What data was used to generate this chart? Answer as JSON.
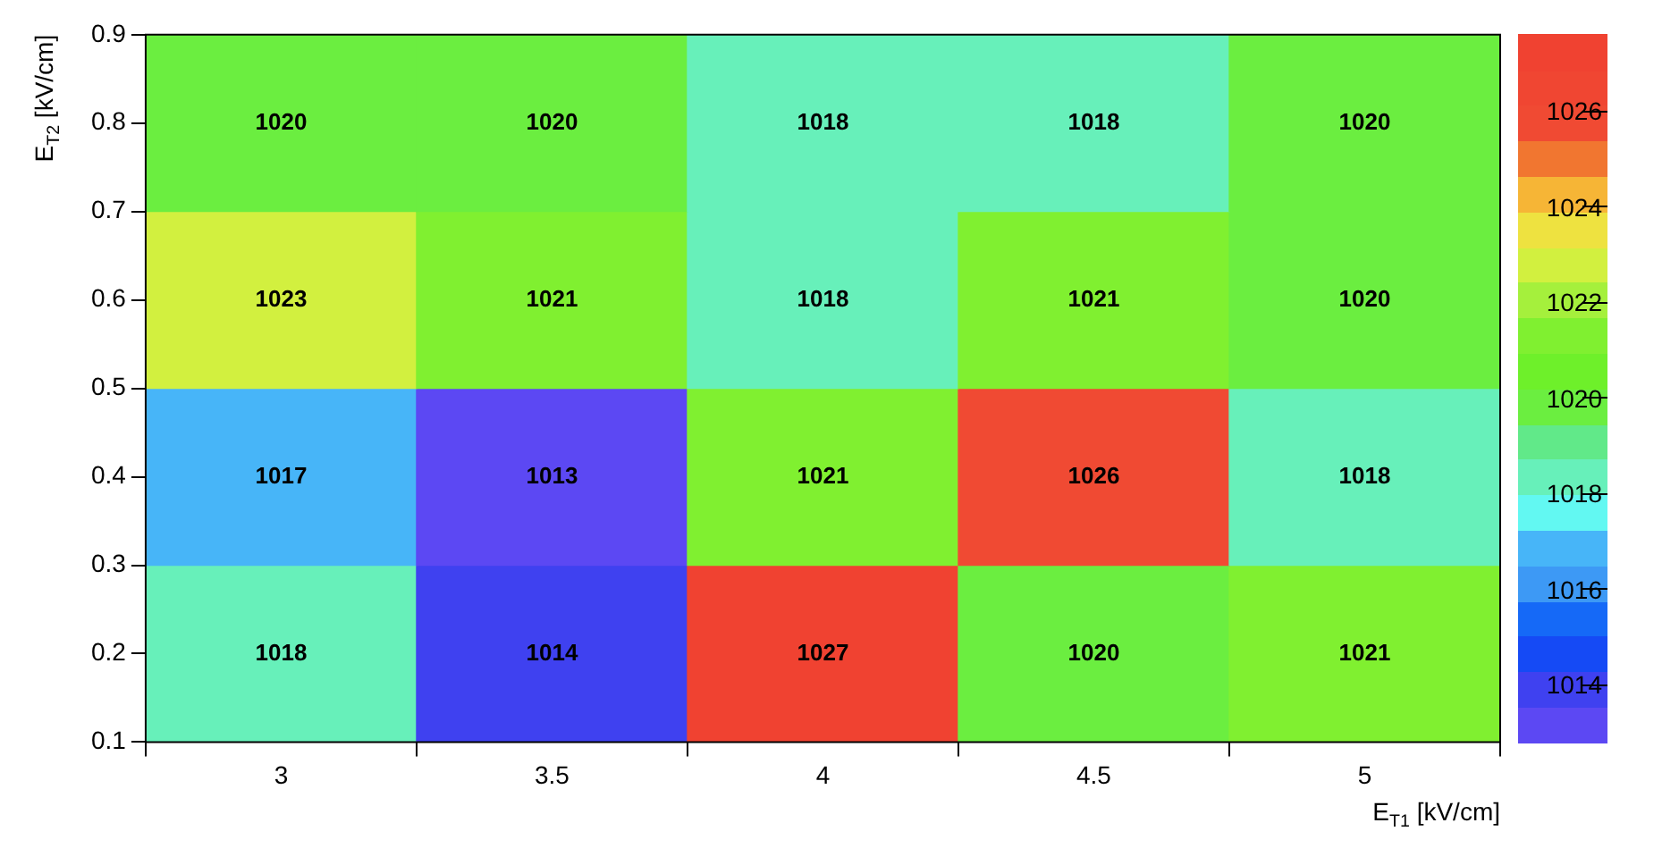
{
  "chart_data": {
    "type": "heatmap",
    "xlabel": "E$_{T1}$ [kV/cm]",
    "ylabel": "E$_{T2}$ [kV/cm]",
    "categories": [
      "3",
      "3.5",
      "4",
      "4.5",
      "5"
    ],
    "ylim": [
      0.1,
      0.9
    ],
    "yticks": [
      0.1,
      0.2,
      0.3,
      0.4,
      0.5,
      0.6,
      0.7,
      0.8,
      0.9
    ],
    "cells": [
      [
        1020,
        1020,
        1018,
        1018,
        1020
      ],
      [
        1023,
        1021,
        1018,
        1021,
        1020
      ],
      [
        1017,
        1013,
        1021,
        1026,
        1018
      ],
      [
        1018,
        1014,
        1027,
        1020,
        1021
      ]
    ],
    "data_labels": true,
    "clim": [
      1012.8,
      1027.6
    ],
    "cticks": [
      1014,
      1016,
      1018,
      1020,
      1022,
      1024,
      1026
    ]
  }
}
